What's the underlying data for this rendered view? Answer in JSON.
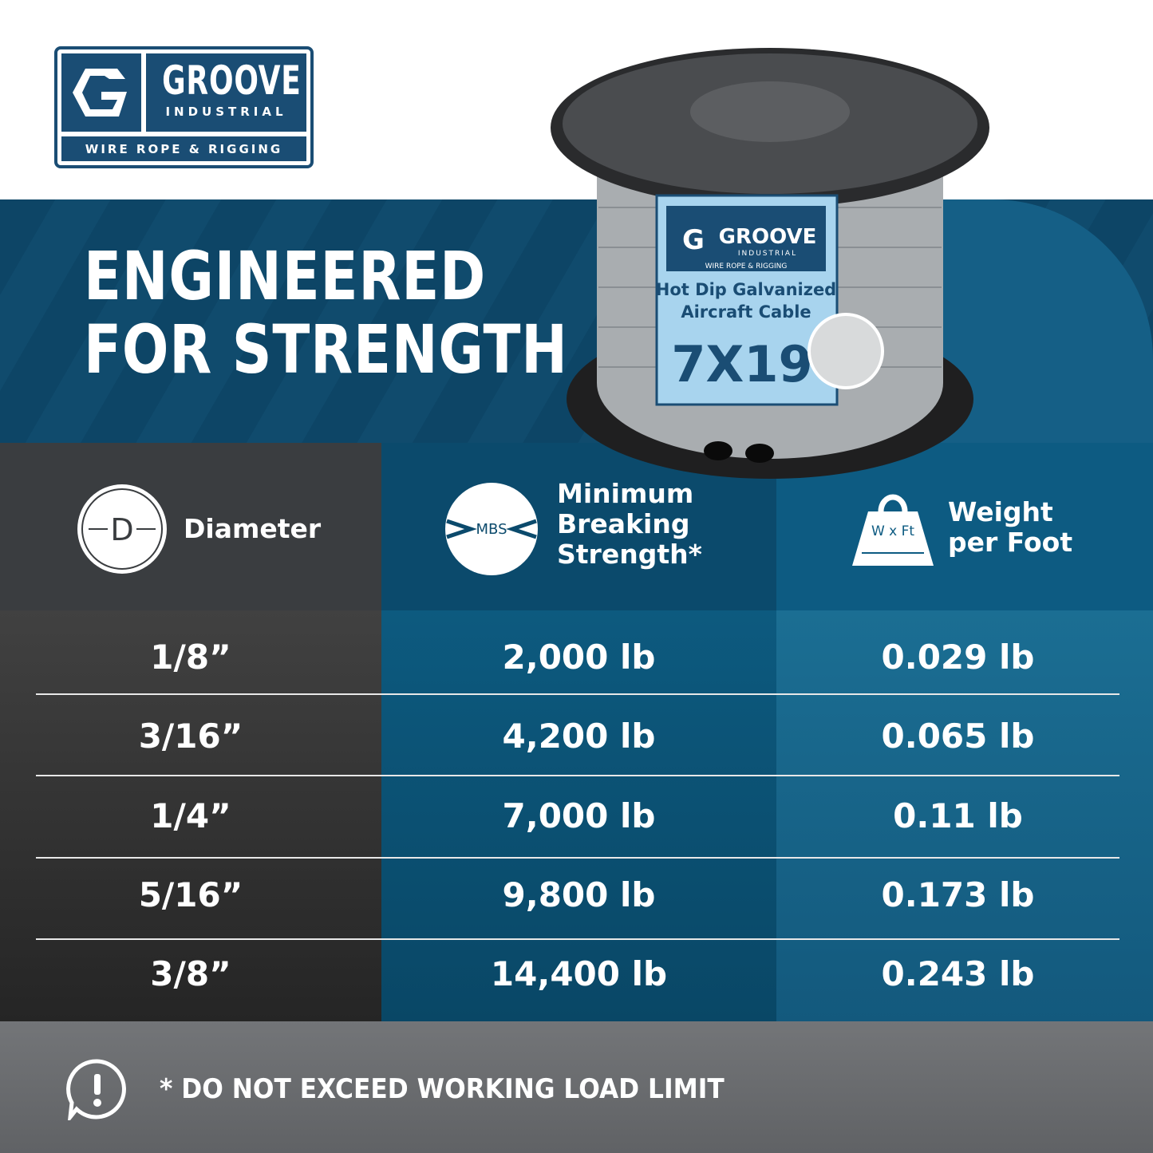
{
  "brand": {
    "name": "GROOVE",
    "sub": "INDUSTRIAL",
    "tagline": "WIRE ROPE & RIGGING",
    "color": "#1a4d74"
  },
  "headline": {
    "line1": "ENGINEERED",
    "line2": "FOR STRENGTH"
  },
  "spool_label": {
    "brand": "GROOVE",
    "sub": "INDUSTRIAL",
    "tagline": "WIRE ROPE & RIGGING",
    "product_line1": "Hot Dip Galvanized",
    "product_line2": "Aircraft Cable",
    "construction": "7X19"
  },
  "table": {
    "headers": [
      {
        "icon": "diameter-icon",
        "icon_text": "D",
        "label": "Diameter"
      },
      {
        "icon": "mbs-icon",
        "icon_text": "MBS",
        "label_lines": [
          "Minimum",
          "Breaking",
          "Strength*"
        ]
      },
      {
        "icon": "weight-icon",
        "icon_text": "W x Ft",
        "label_lines": [
          "Weight",
          "per Foot"
        ]
      }
    ],
    "rows": [
      {
        "diameter": "1/8”",
        "mbs": "2,000 lb",
        "weight": "0.029 lb"
      },
      {
        "diameter": "3/16”",
        "mbs": "4,200 lb",
        "weight": "0.065 lb"
      },
      {
        "diameter": "1/4”",
        "mbs": "7,000 lb",
        "weight": "0.11 lb"
      },
      {
        "diameter": "5/16”",
        "mbs": "9,800 lb",
        "weight": "0.173 lb"
      },
      {
        "diameter": "3/8”",
        "mbs": "14,400 lb",
        "weight": "0.243 lb"
      }
    ]
  },
  "footer": {
    "icon": "alert-speech-icon",
    "text": "* DO NOT EXCEED WORKING LOAD LIMIT"
  }
}
